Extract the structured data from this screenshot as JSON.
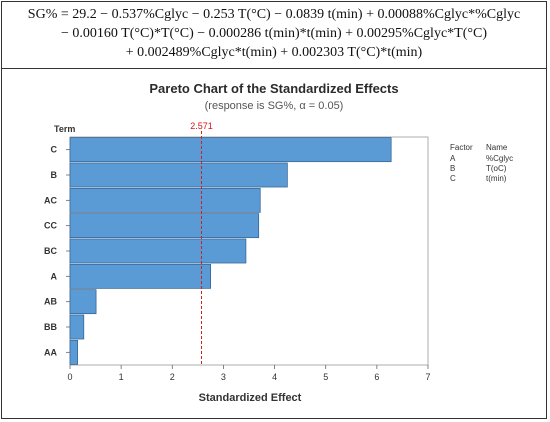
{
  "equation": {
    "line1": "SG% = 29.2 − 0.537%Cglyc − 0.253 T(°C) − 0.0839 t(min) + 0.00088%Cglyc*%Cglyc",
    "line2": "− 0.00160 T(°C)*T(°C) − 0.000286 t(min)*t(min) + 0.00295%Cglyc*T(°C)",
    "line3": "+ 0.002489%Cglyc*t(min) + 0.002303 T(°C)*t(min)"
  },
  "chart_data": {
    "type": "bar",
    "orientation": "horizontal",
    "title": "Pareto Chart of the Standardized Effects",
    "subtitle": "(response is SG%, α = 0.05)",
    "xlabel": "Standardized Effect",
    "ylabel": "Term",
    "categories": [
      "C",
      "B",
      "AC",
      "CC",
      "BC",
      "A",
      "AB",
      "BB",
      "AA"
    ],
    "values": [
      6.28,
      4.25,
      3.72,
      3.69,
      3.44,
      2.75,
      0.51,
      0.27,
      0.15
    ],
    "xlim": [
      0,
      7
    ],
    "xticks": [
      "0",
      "1",
      "2",
      "3",
      "4",
      "5",
      "6",
      "7"
    ],
    "reference_line": {
      "value": 2.571,
      "label": "2.571",
      "color": "#d11f1f"
    },
    "bar_color": "#5b9bd5",
    "legend": {
      "headers": [
        "Factor",
        "Name"
      ],
      "rows": [
        {
          "factor": "A",
          "name": "%Cglyc"
        },
        {
          "factor": "B",
          "name": "T(oC)"
        },
        {
          "factor": "C",
          "name": "t(min)"
        }
      ],
      "placement": "top-right"
    }
  }
}
